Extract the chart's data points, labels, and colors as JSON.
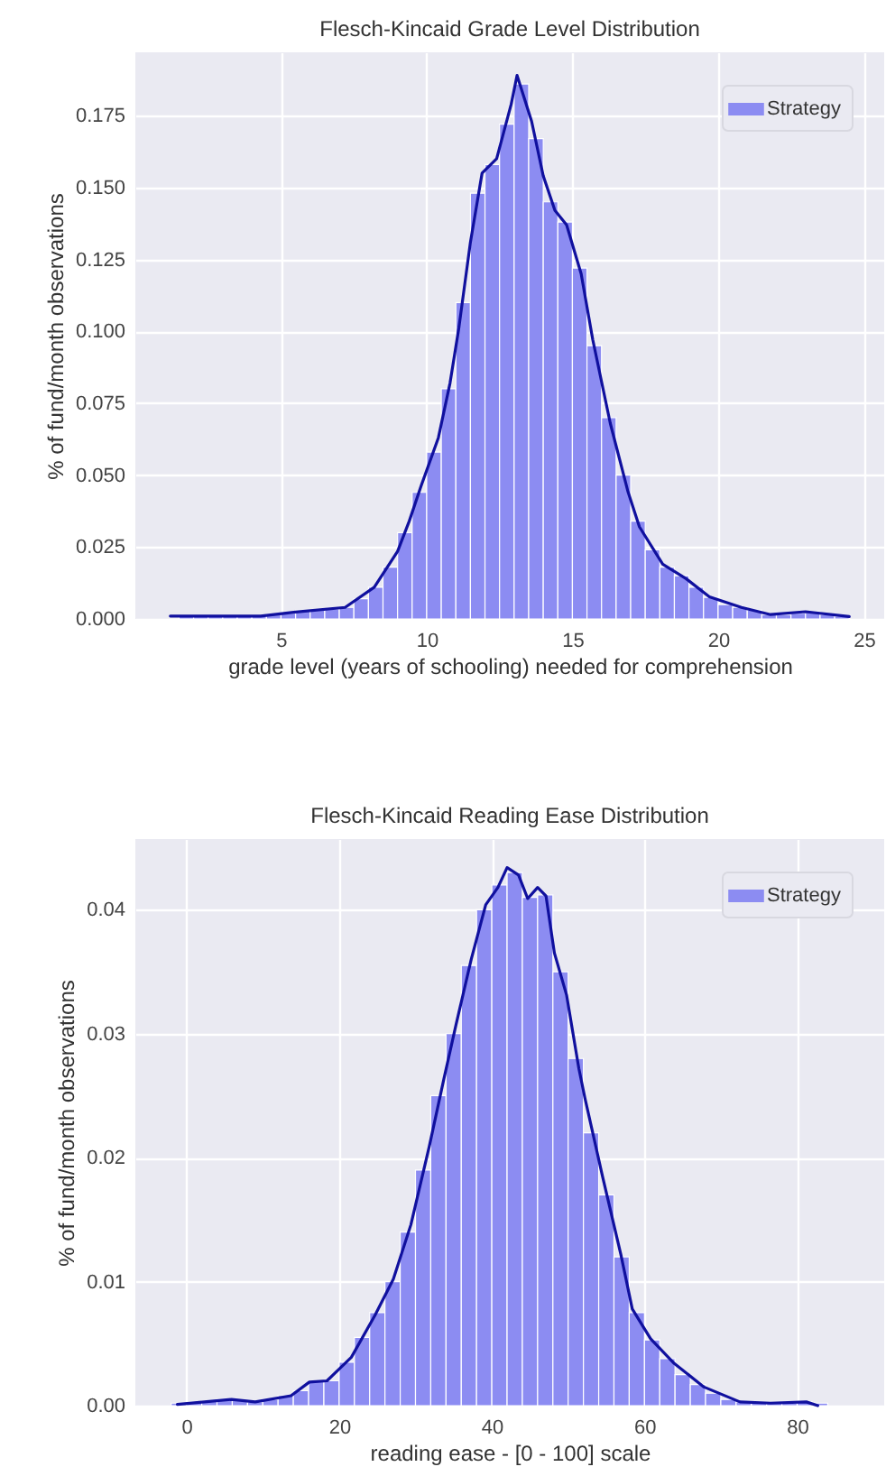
{
  "chart_data": [
    {
      "type": "histogram",
      "title": "Flesch-Kincaid Grade Level Distribution",
      "xlabel": "grade level (years of schooling) needed for comprehension",
      "ylabel": "% of fund/month observations",
      "bins": [
        1.5,
        2,
        2.5,
        3,
        3.5,
        4,
        4.5,
        5,
        5.5,
        6,
        6.5,
        7,
        7.5,
        8,
        8.5,
        9,
        9.5,
        10,
        10.5,
        11,
        11.5,
        12,
        12.5,
        13,
        13.5,
        14,
        14.5,
        15,
        15.5,
        16,
        16.5,
        17,
        17.5,
        18,
        18.5,
        19,
        19.5,
        20,
        20.5,
        21,
        21.5,
        22,
        22.5,
        23,
        23.5,
        24,
        24.5
      ],
      "series": [
        {
          "name": "Strategy",
          "color": "#8c8cf2",
          "values": [
            0.001,
            0.001,
            0.001,
            0.001,
            0.001,
            0.001,
            0.0015,
            0.002,
            0.003,
            0.003,
            0.0035,
            0.004,
            0.007,
            0.011,
            0.018,
            0.03,
            0.044,
            0.058,
            0.08,
            0.11,
            0.148,
            0.158,
            0.172,
            0.186,
            0.167,
            0.145,
            0.138,
            0.122,
            0.095,
            0.07,
            0.05,
            0.034,
            0.024,
            0.018,
            0.015,
            0.011,
            0.0075,
            0.005,
            0.004,
            0.003,
            0.0015,
            0.0015,
            0.002,
            0.0025,
            0.0015,
            0.001
          ]
        },
        {
          "type": "line",
          "color": "#10109e",
          "x": [
            1.2,
            4.3,
            5.5,
            7.2,
            8.2,
            9.0,
            9.4,
            9.8,
            10.4,
            10.8,
            11.1,
            11.5,
            11.9,
            12.4,
            12.9,
            13.1,
            13.6,
            14.0,
            14.4,
            14.8,
            15.3,
            15.7,
            16.3,
            16.9,
            17.3,
            18.1,
            18.9,
            19.7,
            20.8,
            21.8,
            23.0,
            24.5
          ],
          "values": [
            0.001,
            0.001,
            0.0024,
            0.004,
            0.011,
            0.0235,
            0.034,
            0.046,
            0.063,
            0.082,
            0.101,
            0.131,
            0.155,
            0.16,
            0.179,
            0.189,
            0.173,
            0.154,
            0.142,
            0.137,
            0.12,
            0.097,
            0.068,
            0.0445,
            0.032,
            0.019,
            0.014,
            0.0077,
            0.004,
            0.0015,
            0.0025,
            0.0008
          ]
        }
      ],
      "xlim": [
        0,
        25.7
      ],
      "ylim": [
        0,
        0.197
      ],
      "xticks": [
        5,
        10,
        15,
        20,
        25
      ],
      "yticks": [
        {
          "value": 0,
          "label": "0.000"
        },
        0.025,
        {
          "value": 0.05,
          "label": "0.050"
        },
        0.075,
        {
          "value": 0.1,
          "label": "0.100"
        },
        0.125,
        {
          "value": 0.15,
          "label": "0.150"
        },
        0.175
      ],
      "grid": true,
      "legend": "top right"
    },
    {
      "type": "histogram",
      "title": "Flesch-Kincaid Reading Ease Distribution",
      "xlabel": "reading ease - [0 - 100] scale",
      "ylabel": "% of fund/month observations",
      "bins": [
        -2,
        0,
        2,
        4,
        6,
        8,
        10,
        12,
        14,
        16,
        18,
        20,
        22,
        24,
        26,
        28,
        30,
        32,
        34,
        36,
        38,
        40,
        42,
        44,
        46,
        48,
        50,
        52,
        54,
        56,
        58,
        60,
        62,
        64,
        66,
        68,
        70,
        72,
        74,
        76,
        78,
        80,
        82,
        84,
        86
      ],
      "series": [
        {
          "name": "Strategy",
          "color": "#8c8cf2",
          "values": [
            0.0002,
            0.0003,
            0.0004,
            0.0005,
            0.0004,
            0.0003,
            0.0005,
            0.0008,
            0.0012,
            0.002,
            0.002,
            0.0035,
            0.0055,
            0.0075,
            0.01,
            0.014,
            0.019,
            0.025,
            0.03,
            0.0355,
            0.04,
            0.042,
            0.043,
            0.041,
            0.0412,
            0.035,
            0.028,
            0.022,
            0.017,
            0.012,
            0.0075,
            0.0053,
            0.0038,
            0.0025,
            0.0017,
            0.001,
            0.0005,
            0.0003,
            0.0002,
            0.0002,
            0.0002,
            0.0003,
            0.0002,
            null
          ]
        },
        {
          "type": "line",
          "color": "#10109e",
          "x": [
            -1.2,
            5.9,
            9.0,
            13.7,
            16.1,
            18.4,
            21.6,
            24.7,
            27.1,
            29.4,
            31.8,
            33.7,
            35.3,
            37.3,
            39.2,
            40.8,
            42.0,
            43.5,
            44.7,
            46.0,
            47.1,
            48.2,
            49.8,
            51.4,
            52.2,
            54.5,
            56.9,
            58.4,
            60.8,
            63.9,
            67.8,
            72.5,
            76.5,
            81.2,
            82.7
          ],
          "values": [
            0.0001,
            0.0005,
            0.0003,
            0.0008,
            0.0019,
            0.002,
            0.0039,
            0.0073,
            0.0102,
            0.0146,
            0.0209,
            0.0263,
            0.0307,
            0.036,
            0.0404,
            0.0418,
            0.0434,
            0.0428,
            0.0409,
            0.0418,
            0.0411,
            0.0365,
            0.0331,
            0.0272,
            0.0248,
            0.0185,
            0.0122,
            0.0078,
            0.0054,
            0.0034,
            0.0015,
            0.0003,
            0.0002,
            0.0003,
            0
          ]
        }
      ],
      "xlim": [
        -6.7,
        91.4
      ],
      "ylim": [
        0,
        0.0457
      ],
      "xticks": [
        0,
        20,
        40,
        60,
        80
      ],
      "yticks": [
        {
          "value": 0,
          "label": "0.00"
        },
        0.01,
        0.02,
        0.03,
        0.04
      ],
      "grid": true,
      "legend": "top right"
    }
  ]
}
